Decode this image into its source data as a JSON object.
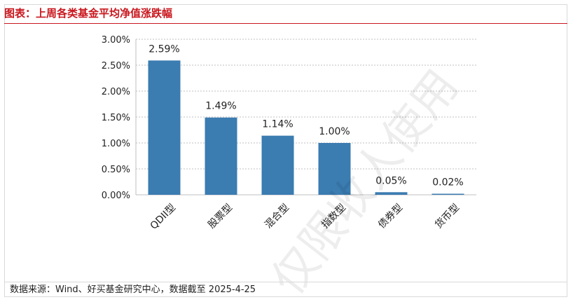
{
  "header": {
    "title": "图表：上周各类基金平均净值涨跌幅"
  },
  "chart_data": {
    "type": "bar",
    "categories": [
      "QDII型",
      "股票型",
      "混合型",
      "指数型",
      "债券型",
      "货币型"
    ],
    "values": [
      2.59,
      1.49,
      1.14,
      1.0,
      0.05,
      0.02
    ],
    "value_labels": [
      "2.59%",
      "1.49%",
      "1.14%",
      "1.00%",
      "0.05%",
      "0.02%"
    ],
    "ylim": [
      0,
      3
    ],
    "yticks": [
      0,
      0.5,
      1.0,
      1.5,
      2.0,
      2.5,
      3.0
    ],
    "ytick_labels": [
      "0.00%",
      "0.50%",
      "1.00%",
      "1.50%",
      "2.00%",
      "2.50%",
      "3.00%"
    ],
    "grid": true,
    "bar_color": "#3b7cb1",
    "grid_color": "#bfbfbf",
    "title": "",
    "xlabel": "",
    "ylabel": ""
  },
  "footer": {
    "source": "数据来源：Wind、好买基金研究中心，数据截至 2025-4-25"
  },
  "colors": {
    "accent": "#c8161d",
    "bar": "#3b7cb1"
  },
  "watermark": {
    "text": "仅限收人使用"
  }
}
